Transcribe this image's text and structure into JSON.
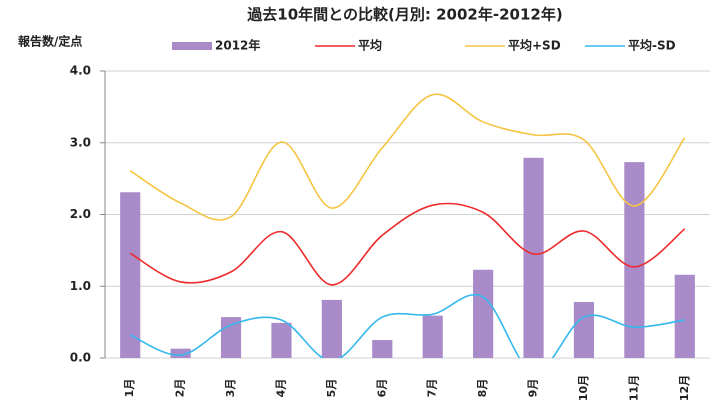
{
  "chart_data": {
    "type": "bar",
    "title": "過去10年間との比較(月別: 2002年-2012年)",
    "y_label": "報告数/定点",
    "categories": [
      "1月",
      "2月",
      "3月",
      "4月",
      "5月",
      "6月",
      "7月",
      "8月",
      "9月",
      "10月",
      "11月",
      "12月"
    ],
    "series": [
      {
        "name": "2012年",
        "type": "bar",
        "color": "#a98bc9",
        "values": [
          2.31,
          0.13,
          0.57,
          0.49,
          0.81,
          0.25,
          0.59,
          1.23,
          2.79,
          0.78,
          2.73,
          1.16
        ]
      },
      {
        "name": "平均",
        "type": "line",
        "color": "#ee2a2a",
        "values": [
          1.46,
          1.06,
          1.2,
          1.76,
          1.02,
          1.71,
          2.13,
          2.03,
          1.45,
          1.77,
          1.27,
          1.8
        ]
      },
      {
        "name": "平均+SD",
        "type": "line",
        "color": "#f4c542",
        "values": [
          2.61,
          2.16,
          1.97,
          3.01,
          2.09,
          2.93,
          3.67,
          3.29,
          3.11,
          3.04,
          2.12,
          3.07
        ]
      },
      {
        "name": "平均-SD",
        "type": "line",
        "color": "#35b8ee",
        "values": [
          0.32,
          0.04,
          0.46,
          0.53,
          -0.04,
          0.57,
          0.61,
          0.85,
          -0.2,
          0.57,
          0.43,
          0.53
        ]
      }
    ],
    "ylim": [
      0,
      4
    ],
    "yticks": [
      {
        "value": 0,
        "label": "0.0"
      },
      {
        "value": 1,
        "label": "1.0"
      },
      {
        "value": 2,
        "label": "2.0"
      },
      {
        "value": 3,
        "label": "3.0"
      },
      {
        "value": 4,
        "label": "4.0"
      }
    ],
    "grid": true,
    "legend": "top",
    "smooth": true
  }
}
